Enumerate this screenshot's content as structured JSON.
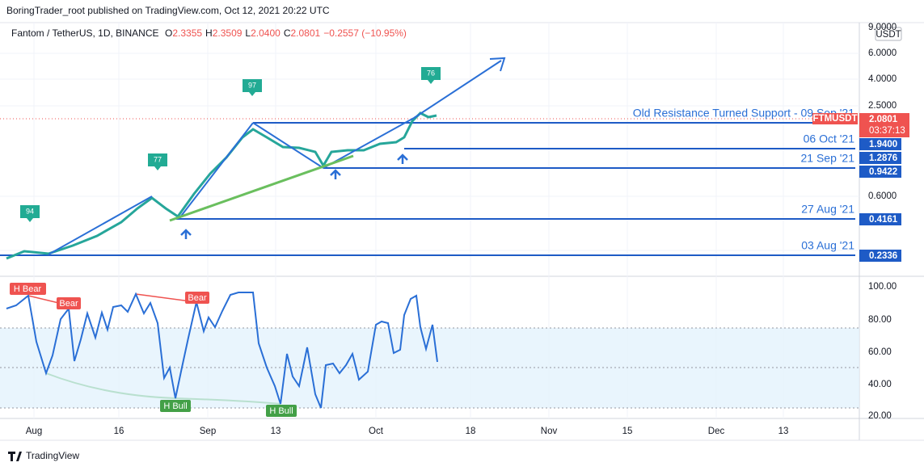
{
  "header": {
    "publisher": "BoringTrader_root published on TradingView.com, Oct 12, 2021 20:22 UTC"
  },
  "symbol": {
    "name": "Fantom / TetherUS, 1D, BINANCE",
    "ohlc": [
      {
        "label": "O",
        "value": "2.3355"
      },
      {
        "label": "H",
        "value": "2.3509"
      },
      {
        "label": "L",
        "value": "2.0400"
      },
      {
        "label": "C",
        "value": "2.0801"
      }
    ],
    "change": "−0.2557 (−10.95%)"
  },
  "currency": "USDT",
  "price_axis": [
    "9.0000",
    "6.0000",
    "4.0000",
    "2.5000",
    "0.6000"
  ],
  "ticker": {
    "name": "FTMUSDT",
    "price": "2.0801",
    "countdown": "03:37:13"
  },
  "price_badges": [
    "1.9400",
    "1.2876",
    "0.9422",
    "0.4161",
    "0.2336"
  ],
  "levels": [
    "Old Resistance Turned Support - 09 Sep '21",
    "06 Oct '21",
    "21 Sep '21",
    "27 Aug '21",
    "03 Aug '21"
  ],
  "signals": [
    "94",
    "77",
    "97",
    "76"
  ],
  "rsi_axis": [
    "100.00",
    "80.00",
    "60.00",
    "40.00",
    "20.00"
  ],
  "divergences": [
    "H Bear",
    "Bear",
    "Bear",
    "H Bull",
    "H Bull"
  ],
  "time_axis": [
    "Aug",
    "16",
    "Sep",
    "13",
    "Oct",
    "18",
    "Nov",
    "15",
    "Dec",
    "13"
  ],
  "footer": "TradingView"
}
